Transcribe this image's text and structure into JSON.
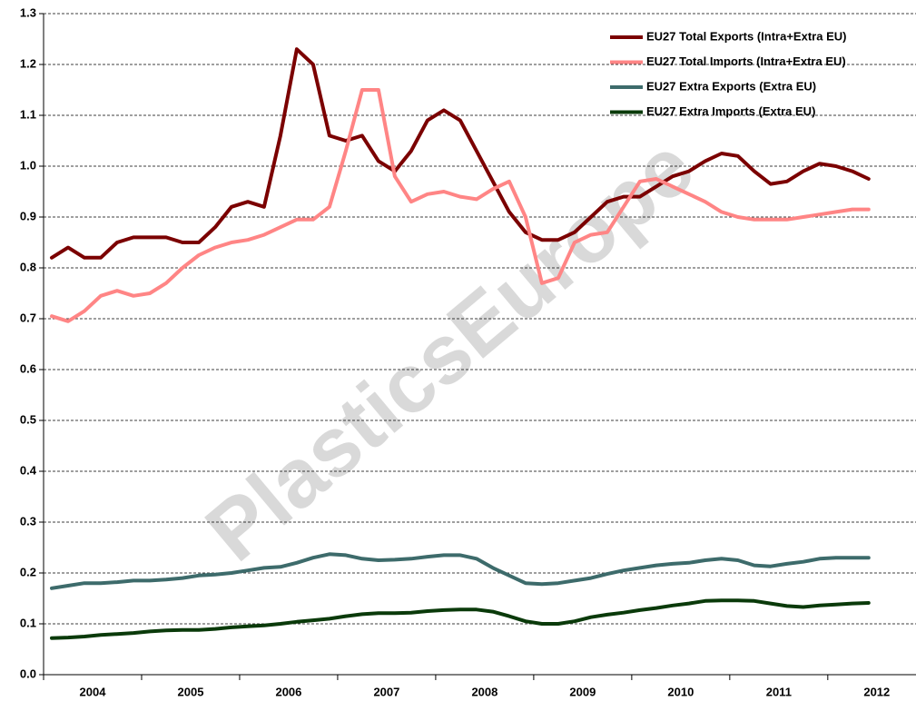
{
  "chart_data": {
    "type": "line",
    "watermark": "PlasticsEurope",
    "categories": [
      null,
      null,
      "2004",
      null,
      null,
      null,
      null,
      null,
      "2005",
      null,
      null,
      null,
      null,
      null,
      "2006",
      null,
      null,
      null,
      null,
      null,
      "2007",
      null,
      null,
      null,
      null,
      null,
      "2008",
      null,
      null,
      null,
      null,
      null,
      "2009",
      null,
      null,
      null,
      null,
      null,
      "2010",
      null,
      null,
      null,
      null,
      null,
      "2011",
      null,
      null,
      null,
      null,
      null,
      "2012"
    ],
    "ylim": [
      0,
      1.3
    ],
    "yticks": [
      {
        "value": 0,
        "label": "0.0"
      },
      0.1,
      0.2,
      0.3,
      0.4,
      0.5,
      0.6,
      0.7,
      0.8,
      0.9,
      {
        "value": 1,
        "label": "1.0"
      },
      1.1,
      1.2,
      1.3
    ],
    "grid": true,
    "legend": "upper right",
    "series": [
      {
        "name": "EU27 Total Exports (Intra+Extra EU)",
        "color": "#7b0000",
        "values": [
          0.82,
          0.84,
          0.82,
          0.82,
          0.85,
          0.86,
          0.86,
          0.86,
          0.85,
          0.85,
          0.88,
          0.92,
          0.93,
          0.92,
          1.06,
          1.23,
          1.2,
          1.06,
          1.05,
          1.06,
          1.01,
          0.99,
          1.03,
          1.09,
          1.11,
          1.09,
          1.03,
          0.97,
          0.91,
          0.87,
          0.855,
          0.855,
          0.87,
          0.9,
          0.93,
          0.94,
          0.94,
          0.96,
          0.98,
          0.99,
          1.01,
          1.025,
          1.02,
          0.99,
          0.965,
          0.97,
          0.99,
          1.005,
          1.0,
          0.99,
          0.975
        ]
      },
      {
        "name": "EU27 Total Imports (Intra+Extra EU)",
        "color": "#ff8585",
        "values": [
          0.705,
          0.695,
          0.715,
          0.745,
          0.755,
          0.745,
          0.75,
          0.77,
          0.8,
          0.825,
          0.84,
          0.85,
          0.855,
          0.865,
          0.88,
          0.895,
          0.895,
          0.92,
          1.03,
          1.15,
          1.15,
          0.98,
          0.93,
          0.945,
          0.95,
          0.94,
          0.935,
          0.955,
          0.97,
          0.9,
          0.77,
          0.78,
          0.85,
          0.865,
          0.87,
          0.92,
          0.97,
          0.975,
          0.96,
          0.945,
          0.93,
          0.91,
          0.9,
          0.895,
          0.895,
          0.895,
          0.9,
          0.905,
          0.91,
          0.915,
          0.915
        ]
      },
      {
        "name": "EU27 Extra Exports (Extra EU)",
        "color": "#3d6b6b",
        "values": [
          0.17,
          0.175,
          0.18,
          0.18,
          0.182,
          0.185,
          0.185,
          0.187,
          0.19,
          0.195,
          0.197,
          0.2,
          0.205,
          0.21,
          0.212,
          0.22,
          0.23,
          0.237,
          0.235,
          0.228,
          0.225,
          0.226,
          0.228,
          0.232,
          0.235,
          0.235,
          0.228,
          0.21,
          0.195,
          0.18,
          0.178,
          0.18,
          0.185,
          0.19,
          0.198,
          0.205,
          0.21,
          0.215,
          0.218,
          0.22,
          0.225,
          0.228,
          0.225,
          0.215,
          0.213,
          0.218,
          0.222,
          0.228,
          0.23,
          0.23,
          0.23
        ]
      },
      {
        "name": "EU27 Extra Imports (Extra EU)",
        "color": "#0a3a0a",
        "values": [
          0.072,
          0.073,
          0.075,
          0.078,
          0.08,
          0.082,
          0.085,
          0.087,
          0.088,
          0.088,
          0.09,
          0.093,
          0.095,
          0.097,
          0.1,
          0.104,
          0.107,
          0.11,
          0.115,
          0.119,
          0.121,
          0.121,
          0.122,
          0.125,
          0.127,
          0.128,
          0.128,
          0.124,
          0.115,
          0.105,
          0.1,
          0.1,
          0.105,
          0.113,
          0.118,
          0.122,
          0.127,
          0.131,
          0.136,
          0.14,
          0.145,
          0.146,
          0.146,
          0.145,
          0.14,
          0.135,
          0.133,
          0.136,
          0.138,
          0.14,
          0.141
        ]
      }
    ]
  }
}
